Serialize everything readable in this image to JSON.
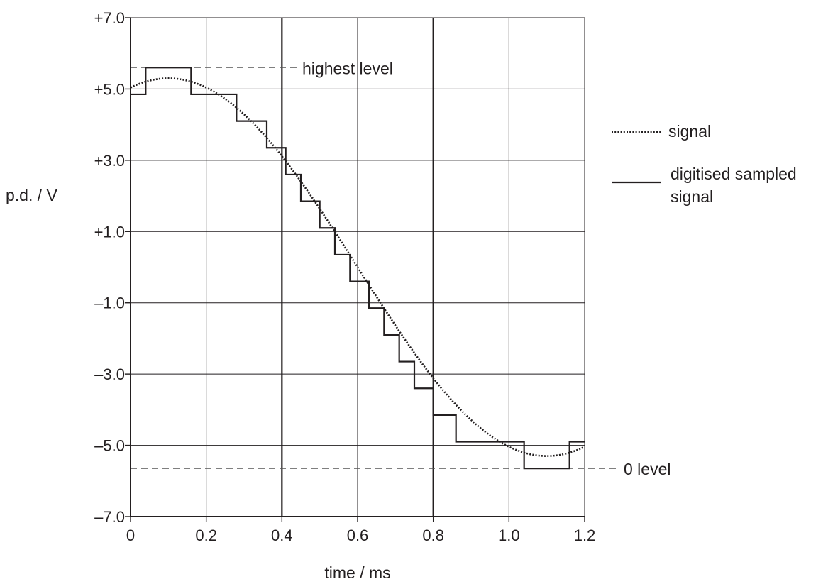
{
  "chart_data": {
    "type": "line",
    "xlabel": "time / ms",
    "ylabel": "p.d. / V",
    "xlim": [
      0,
      1.2
    ],
    "ylim": [
      -7.0,
      7.0
    ],
    "x_ticks": [
      {
        "value": 0,
        "label": "0"
      },
      {
        "value": 0.2,
        "label": "0.2"
      },
      {
        "value": 0.4,
        "label": "0.4"
      },
      {
        "value": 0.6,
        "label": "0.6"
      },
      {
        "value": 0.8,
        "label": "0.8"
      },
      {
        "value": 1.0,
        "label": "1.0"
      },
      {
        "value": 1.2,
        "label": "1.2"
      }
    ],
    "y_ticks": [
      {
        "value": 7.0,
        "label": "+7.0"
      },
      {
        "value": 5.0,
        "label": "+5.0"
      },
      {
        "value": 3.0,
        "label": "+3.0"
      },
      {
        "value": 1.0,
        "label": "+1.0"
      },
      {
        "value": -1.0,
        "label": "–1.0"
      },
      {
        "value": -3.0,
        "label": "–3.0"
      },
      {
        "value": -5.0,
        "label": "–5.0"
      },
      {
        "value": -7.0,
        "label": "–7.0"
      }
    ],
    "grid": true,
    "heavy_gridlines_x": [
      0.4,
      0.8
    ],
    "signal": {
      "name": "signal",
      "amplitude": 5.3,
      "period_ms": 2.0,
      "phase_offset_ms": 0.1,
      "style": "dotted"
    },
    "digitised": {
      "name": "digitised sampled signal",
      "style": "solid",
      "points": [
        [
          0.0,
          4.85
        ],
        [
          0.04,
          4.85
        ],
        [
          0.04,
          5.6
        ],
        [
          0.16,
          5.6
        ],
        [
          0.16,
          4.85
        ],
        [
          0.28,
          4.85
        ],
        [
          0.28,
          4.1
        ],
        [
          0.36,
          4.1
        ],
        [
          0.36,
          3.35
        ],
        [
          0.41,
          3.35
        ],
        [
          0.41,
          2.6
        ],
        [
          0.45,
          2.6
        ],
        [
          0.45,
          1.85
        ],
        [
          0.5,
          1.85
        ],
        [
          0.5,
          1.1
        ],
        [
          0.54,
          1.1
        ],
        [
          0.54,
          0.35
        ],
        [
          0.58,
          0.35
        ],
        [
          0.58,
          -0.4
        ],
        [
          0.63,
          -0.4
        ],
        [
          0.63,
          -1.15
        ],
        [
          0.67,
          -1.15
        ],
        [
          0.67,
          -1.9
        ],
        [
          0.71,
          -1.9
        ],
        [
          0.71,
          -2.65
        ],
        [
          0.75,
          -2.65
        ],
        [
          0.75,
          -3.4
        ],
        [
          0.8,
          -3.4
        ],
        [
          0.8,
          -4.15
        ],
        [
          0.86,
          -4.15
        ],
        [
          0.86,
          -4.9
        ],
        [
          1.04,
          -4.9
        ],
        [
          1.04,
          -5.65
        ],
        [
          1.16,
          -5.65
        ],
        [
          1.16,
          -4.9
        ],
        [
          1.2,
          -4.9
        ]
      ]
    },
    "reference_lines": [
      {
        "value": 5.6,
        "label": "highest level"
      },
      {
        "value": -5.65,
        "label": "0 level"
      }
    ],
    "legend_placement": "right",
    "legend": [
      {
        "key": "signal",
        "label_lines": [
          "signal"
        ]
      },
      {
        "key": "digitised",
        "label_lines": [
          "digitised sampled",
          "signal"
        ]
      }
    ]
  }
}
